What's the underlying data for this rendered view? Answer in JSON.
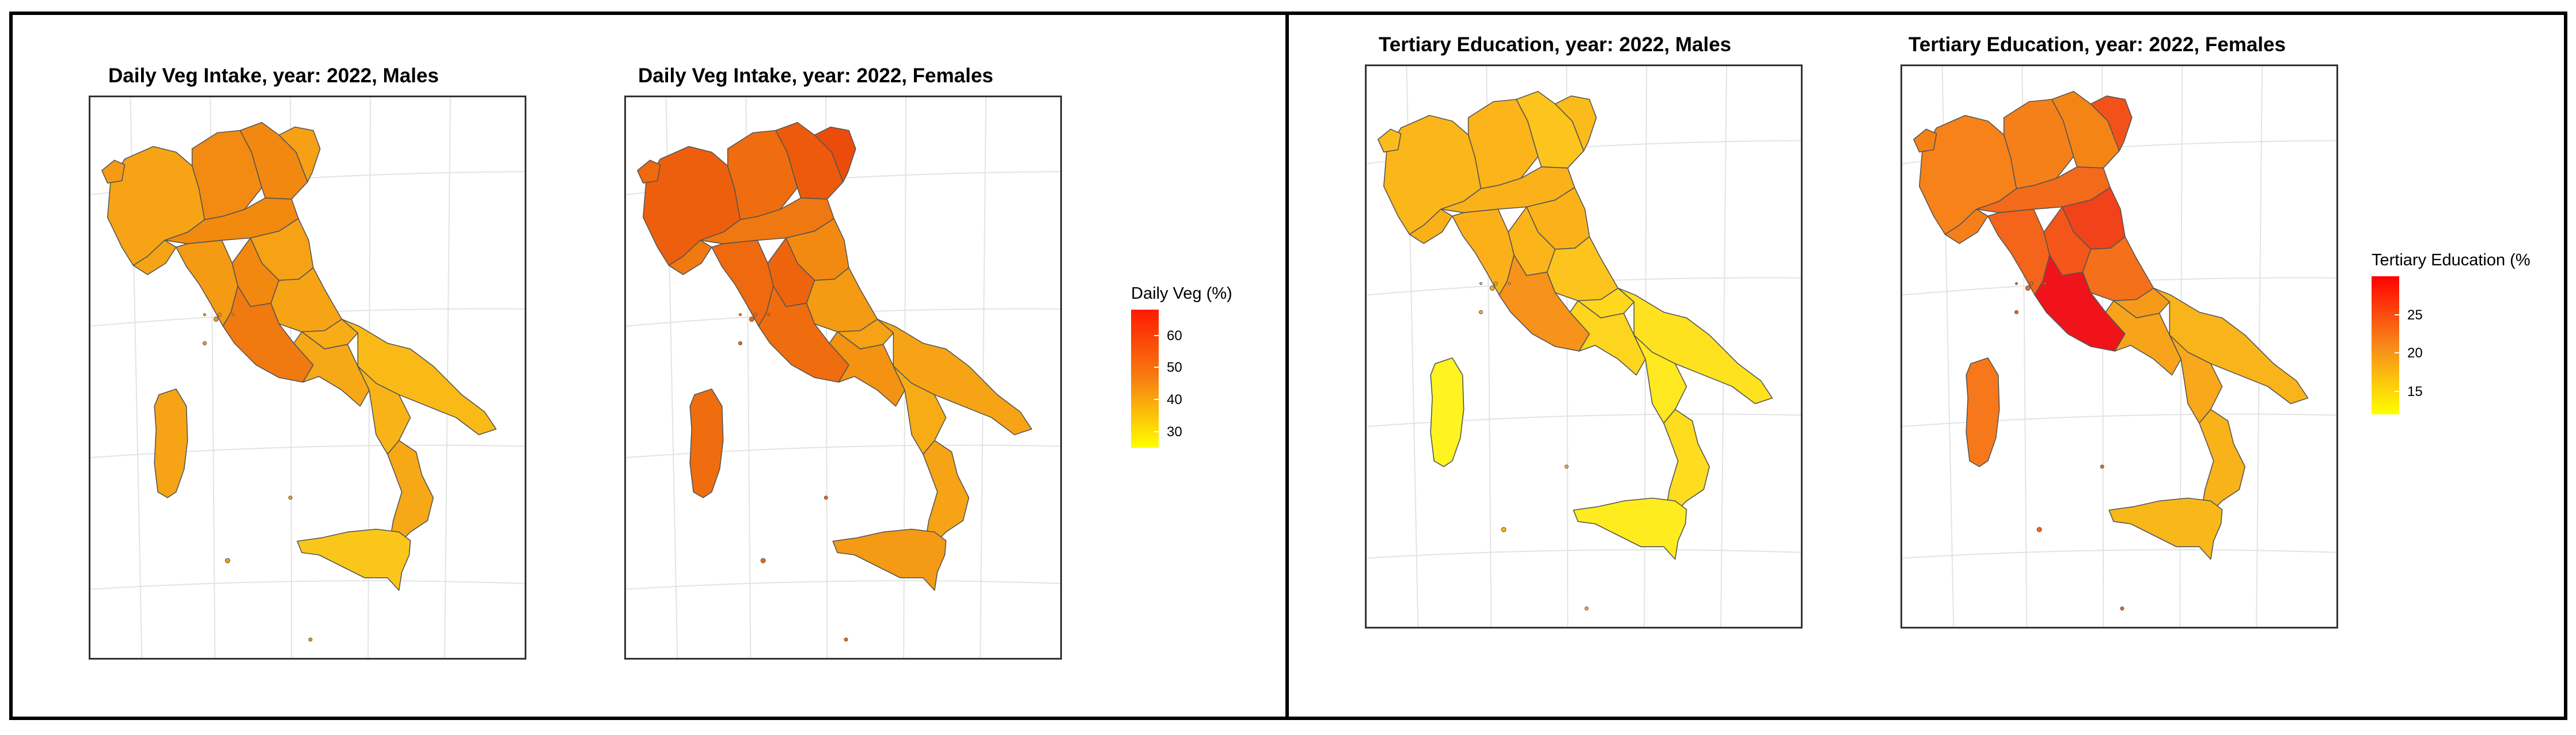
{
  "maps": [
    {
      "id": "veg-males",
      "title": "Daily Veg Intake, year: 2022, Males",
      "fills": {
        "north-west": "#f6a415",
        "north-west-small": "#f59a14",
        "north": "#f38a12",
        "north-east": "#f28810",
        "north-east-tip": "#f6a016",
        "liguria": "#f6a415",
        "emilia": "#f28a10",
        "tuscany": "#f49a13",
        "marche": "#f6a214",
        "umbria": "#f28810",
        "lazio": "#f07a10",
        "abruzzo": "#f6a416",
        "molise": "#f8ac16",
        "campania": "#f7a816",
        "puglia": "#f9ba18",
        "basilicata": "#f8b417",
        "calabria": "#f7a816",
        "sicily": "#fbc61a",
        "sardinia": "#f6a416"
      }
    },
    {
      "id": "veg-females",
      "title": "Daily Veg Intake, year: 2022, Females",
      "fills": {
        "north-west": "#ee5f0d",
        "north-west-small": "#ef6a0e",
        "north": "#ef6d0e",
        "north-east": "#ed5a0c",
        "north-east-tip": "#ec4c0b",
        "liguria": "#f07a10",
        "emilia": "#f07810",
        "tuscany": "#ef6a0e",
        "marche": "#f28a12",
        "umbria": "#ee640d",
        "lazio": "#ef6d0e",
        "abruzzo": "#f49a13",
        "molise": "#f6a214",
        "campania": "#f49212",
        "puglia": "#f6a416",
        "basilicata": "#f7ac16",
        "calabria": "#f6a416",
        "sicily": "#f59a14",
        "sardinia": "#ef6d0e"
      }
    },
    {
      "id": "edu-males",
      "title": "Tertiary Education, year: 2022, Males",
      "fills": {
        "north-west": "#fbb61a",
        "north-west-small": "#fbbc1b",
        "north": "#fbb41a",
        "north-east": "#fcc41c",
        "north-east-tip": "#fbbc1b",
        "liguria": "#fbb01a",
        "emilia": "#fbb21a",
        "tuscany": "#fbb01a",
        "marche": "#fbb21a",
        "umbria": "#fbb41a",
        "lazio": "#f7921a",
        "abruzzo": "#fcc41c",
        "molise": "#fdd81e",
        "campania": "#fdd41e",
        "puglia": "#fee21f",
        "basilicata": "#fee81f",
        "calabria": "#fedc1e",
        "sicily": "#feec1f",
        "sardinia": "#fef41f"
      }
    },
    {
      "id": "edu-females",
      "title": "Tertiary Education, year: 2022, Females",
      "fills": {
        "north-west": "#f7821a",
        "north-west-small": "#f58216",
        "north": "#f5801a",
        "north-east": "#f58416",
        "north-east-tip": "#f2521a",
        "liguria": "#f5801a",
        "emilia": "#f36a1a",
        "tuscany": "#f4641a",
        "marche": "#f2421a",
        "umbria": "#f4561a",
        "lazio": "#f0141a",
        "abruzzo": "#f4701a",
        "molise": "#f79a1a",
        "campania": "#f8a41a",
        "puglia": "#f8b41a",
        "basilicata": "#f8a81a",
        "calabria": "#f8b21a",
        "sicily": "#f9b81a",
        "sardinia": "#f7781a"
      }
    }
  ],
  "legends": [
    {
      "id": "veg-legend",
      "title": "Daily Veg (%)",
      "ticks": [
        {
          "label": "60",
          "value": 60
        },
        {
          "label": "50",
          "value": 50
        },
        {
          "label": "40",
          "value": 40
        },
        {
          "label": "30",
          "value": 30
        }
      ],
      "range": [
        25,
        68
      ],
      "colors": [
        "#ff1a00",
        "#f77f12",
        "#ffff00"
      ]
    },
    {
      "id": "edu-legend",
      "title": "Tertiary Education (%",
      "ticks": [
        {
          "label": "25",
          "value": 25
        },
        {
          "label": "20",
          "value": 20
        },
        {
          "label": "15",
          "value": 15
        }
      ],
      "range": [
        12,
        30
      ],
      "colors": [
        "#ff0000",
        "#f7891a",
        "#ffff00"
      ]
    }
  ]
}
